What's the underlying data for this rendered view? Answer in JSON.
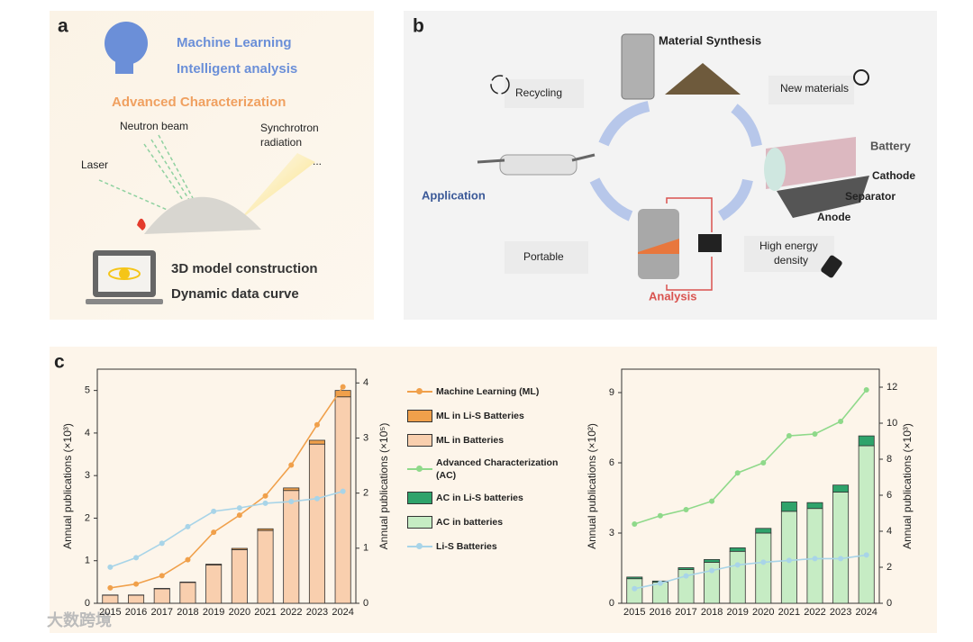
{
  "panel_a": {
    "label": "a",
    "machine_learning": "Machine Learning",
    "intelligent_analysis": "Intelligent analysis",
    "advanced_characterization": "Advanced Characterization",
    "neutron_beam": "Neutron beam",
    "synchrotron": [
      "Synchrotron",
      "radiation"
    ],
    "laser": "Laser",
    "ellipsis": "...",
    "model": "3D model construction",
    "curve": "Dynamic data curve"
  },
  "panel_b": {
    "label": "b",
    "material_synthesis": "Material Synthesis",
    "recycling": "Recycling",
    "new_materials": "New materials",
    "battery": "Battery",
    "cathode": "Cathode",
    "separator": "Separator",
    "anode": "Anode",
    "application": "Application",
    "portable": "Portable",
    "high_energy_density": [
      "High energy",
      "density"
    ],
    "analysis": "Analysis"
  },
  "panel_c": {
    "label": "c"
  },
  "watermark": "大数跨境",
  "chart_data": [
    {
      "type": "combo",
      "stacked": true,
      "categories": [
        "2015",
        "2016",
        "2017",
        "2018",
        "2019",
        "2020",
        "2021",
        "2022",
        "2023",
        "2024"
      ],
      "ylabel": "Annual publications (×10³)",
      "y2label": "Annual publications (×10⁵)",
      "ylim": [
        0,
        5.5
      ],
      "yticks": [
        0,
        1,
        2,
        3,
        4,
        5
      ],
      "y2lim": [
        0,
        4.25
      ],
      "y2ticks": [
        0,
        1,
        2,
        3,
        4
      ],
      "series": [
        {
          "name": "Machine Learning (ML)",
          "kind": "line",
          "axis": "y2",
          "color": "#f0a04b",
          "values": [
            0.28,
            0.35,
            0.5,
            0.79,
            1.29,
            1.6,
            1.95,
            2.51,
            3.24,
            3.93
          ]
        },
        {
          "name": "ML in Li-S Batteries",
          "kind": "bar",
          "color": "#f0a04b",
          "values": [
            0.005,
            0.005,
            0.01,
            0.01,
            0.02,
            0.03,
            0.04,
            0.06,
            0.09,
            0.15
          ]
        },
        {
          "name": "ML in Batteries",
          "kind": "bar",
          "color": "#f9cfae",
          "values": [
            0.19,
            0.19,
            0.34,
            0.49,
            0.9,
            1.26,
            1.71,
            2.65,
            3.74,
            4.85
          ]
        },
        {
          "name": "Li-S Batteries",
          "kind": "line",
          "color": "#a8d4e8",
          "values": [
            0.85,
            1.07,
            1.41,
            1.8,
            2.16,
            2.24,
            2.35,
            2.39,
            2.46,
            2.63
          ]
        }
      ]
    },
    {
      "type": "combo",
      "stacked": true,
      "categories": [
        "2015",
        "2016",
        "2017",
        "2018",
        "2019",
        "2020",
        "2021",
        "2022",
        "2023",
        "2024"
      ],
      "ylabel": "Annual publications (×10²)",
      "y2label": "Annual publications (×10³)",
      "ylim": [
        0,
        10
      ],
      "yticks": [
        0,
        3,
        6,
        9
      ],
      "y2lim": [
        0,
        13
      ],
      "y2ticks": [
        0,
        2,
        4,
        6,
        8,
        10,
        12
      ],
      "series": [
        {
          "name": "Advanced Characterization (AC)",
          "kind": "line",
          "axis": "y2",
          "color": "#8fd98a",
          "values": [
            4.4,
            4.86,
            5.2,
            5.67,
            7.24,
            7.8,
            9.3,
            9.4,
            10.1,
            11.85
          ]
        },
        {
          "name": "AC in Li-S batteries",
          "kind": "bar",
          "color": "#2ea36b",
          "values": [
            0.07,
            0.05,
            0.08,
            0.12,
            0.15,
            0.2,
            0.4,
            0.25,
            0.3,
            0.42
          ]
        },
        {
          "name": "AC in batteries",
          "kind": "bar",
          "color": "#c6ecc4",
          "values": [
            1.05,
            0.9,
            1.44,
            1.75,
            2.22,
            3.0,
            3.93,
            4.05,
            4.75,
            6.73
          ]
        },
        {
          "kind": "line",
          "axis": "y2",
          "color": "#a8d4e8",
          "values": [
            0.81,
            1.11,
            1.52,
            1.82,
            2.13,
            2.28,
            2.38,
            2.48,
            2.48,
            2.68
          ]
        }
      ]
    }
  ]
}
